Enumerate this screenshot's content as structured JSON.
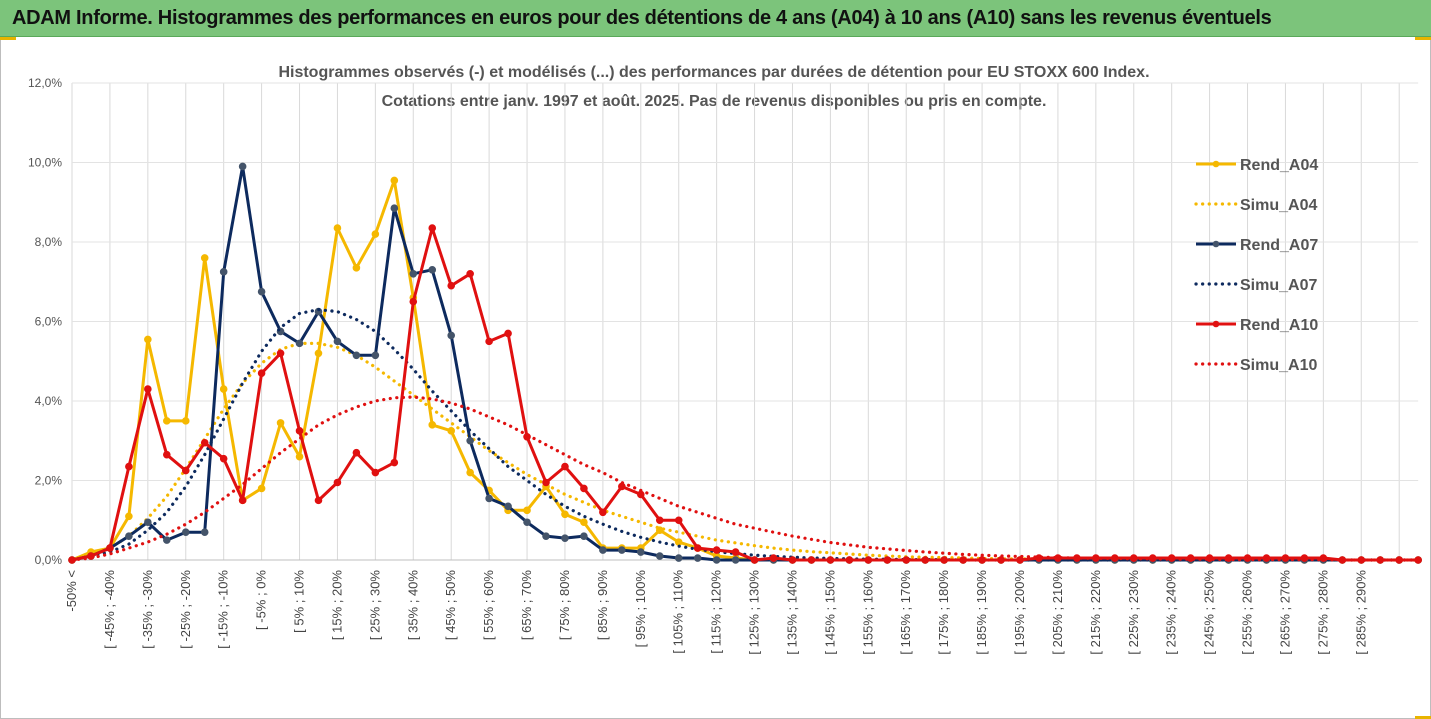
{
  "banner": {
    "title": "ADAM Informe. Histogrammes des performances en euros pour des détentions de 4 ans (A04) à 10 ans (A10) sans les revenus éventuels"
  },
  "chart_data": {
    "type": "line",
    "title_lines": [
      "Histogrammes observés (-) et modélisés (...) des performances par durées de détention pour EU STOXX 600 Index.",
      "Cotations entre janv. 1997 et août. 2025. Pas de revenus disponibles ou pris en compte."
    ],
    "xlabel": "",
    "ylabel": "",
    "ylim": [
      0,
      12
    ],
    "y_ticks": [
      0,
      2,
      4,
      6,
      8,
      10,
      12
    ],
    "y_tick_labels": [
      "0,0%",
      "2,0%",
      "4,0%",
      "6,0%",
      "8,0%",
      "10,0%",
      "12,0%"
    ],
    "grid": "vertical",
    "legend_position": "right",
    "categories": [
      "-50% <",
      "[ -50% ; -45%",
      "[ -45% ; -40%",
      "[ -40% ; -35%",
      "[ -35% ; -30%",
      "[ -30% ; -25%",
      "[ -25% ; -20%",
      "[ -20% ; -15%",
      "[ -15% ; -10%",
      "[ -10% ; -5%",
      "[ -5% ; 0%",
      "[ 0% ; 5%",
      "[ 5% ; 10%",
      "[ 10% ; 15%",
      "[ 15% ; 20%",
      "[ 20% ; 25%",
      "[ 25% ; 30%",
      "[ 30% ; 35%",
      "[ 35% ; 40%",
      "[ 40% ; 45%",
      "[ 45% ; 50%",
      "[ 50% ; 55%",
      "[ 55% ; 60%",
      "[ 60% ; 65%",
      "[ 65% ; 70%",
      "[ 70% ; 75%",
      "[ 75% ; 80%",
      "[ 80% ; 85%",
      "[ 85% ; 90%",
      "[ 90% ; 95%",
      "[ 95% ; 100%",
      "[ 100% ; 105%",
      "[ 105% ; 110%",
      "[ 110% ; 115%",
      "[ 115% ; 120%",
      "[ 120% ; 125%",
      "[ 125% ; 130%",
      "[ 130% ; 135%",
      "[ 135% ; 140%",
      "[ 140% ; 145%",
      "[ 145% ; 150%",
      "[ 150% ; 155%",
      "[ 155% ; 160%",
      "[ 160% ; 165%",
      "[ 165% ; 170%",
      "[ 170% ; 175%",
      "[ 175% ; 180%",
      "[ 180% ; 185%",
      "[ 185% ; 190%",
      "[ 190% ; 195%",
      "[ 195% ; 200%",
      "[ 200% ; 205%",
      "[ 205% ; 210%",
      "[ 210% ; 215%",
      "[ 215% ; 220%",
      "[ 220% ; 225%",
      "[ 225% ; 230%",
      "[ 230% ; 235%",
      "[ 235% ; 240%",
      "[ 240% ; 245%",
      "[ 245% ; 250%",
      "[ 250% ; 255%",
      "[ 255% ; 260%",
      "[ 260% ; 265%",
      "[ 265% ; 270%",
      "[ 270% ; 275%",
      "[ 275% ; 280%",
      "[ 280% ; 285%",
      "[ 285% ; 290%",
      "[ 290% ; 295%",
      "[ 295% ; 300%",
      "[ 300% ; 305%"
    ],
    "visible_tick_labels": [
      "-50% <",
      "[ -45% ; -40%",
      "[ -35% ; -30%",
      "[ -25% ; -20%",
      "[ -15% ; -10%",
      "[ -5% ; 0%",
      "[ 5% ; 10%",
      "[ 15% ; 20%",
      "[ 25% ; 30%",
      "[ 35% ; 40%",
      "[ 45% ; 50%",
      "[ 55% ; 60%",
      "[ 65% ; 70%",
      "[ 75% ; 80%",
      "[ 85% ; 90%",
      "[ 95% ; 100%",
      "[ 105% ; 110%",
      "[ 115% ; 120%",
      "[ 125% ; 130%",
      "[ 135% ; 140%",
      "[ 145% ; 150%",
      "[ 155% ; 160%",
      "[ 165% ; 170%",
      "[ 175% ; 180%",
      "[ 185% ; 190%",
      "[ 195% ; 200%",
      "[ 205% ; 210%",
      "[ 215% ; 220%",
      "[ 225% ; 230%",
      "[ 235% ; 240%",
      "[ 245% ; 250%",
      "[ 255% ; 260%",
      "[ 265% ; 270%",
      "[ 275% ; 280%",
      "[ 285% ; 290%"
    ],
    "series": [
      {
        "name": "Rend_A04",
        "style": "solid",
        "color": "#f5b800",
        "values": [
          0.0,
          0.2,
          0.3,
          1.1,
          5.55,
          3.5,
          3.5,
          7.6,
          4.3,
          1.5,
          1.8,
          3.45,
          2.6,
          5.2,
          8.35,
          7.35,
          8.2,
          9.55,
          6.6,
          3.4,
          3.25,
          2.2,
          1.75,
          1.25,
          1.25,
          1.85,
          1.15,
          0.95,
          0.3,
          0.3,
          0.3,
          0.75,
          0.45,
          0.3,
          0.1,
          0.05,
          0.0,
          0.0,
          0.0,
          0.0,
          0.0,
          0.0,
          0.0,
          0.0,
          0.0,
          0.0,
          0.0,
          0.0,
          0.0,
          0.0,
          0.0,
          0.0,
          0.0,
          0.0,
          0.0,
          0.0,
          0.0,
          0.0,
          0.0,
          0.0,
          0.0,
          0.0,
          0.0,
          0.0,
          0.0,
          0.0,
          0.0,
          0.0,
          0.0,
          0.0,
          0.0,
          0.0
        ]
      },
      {
        "name": "Simu_A04",
        "style": "dotted",
        "color": "#f5b800",
        "values": [
          0.0,
          0.1,
          0.3,
          0.6,
          1.05,
          1.6,
          2.3,
          3.05,
          3.8,
          4.45,
          4.95,
          5.3,
          5.45,
          5.45,
          5.35,
          5.15,
          4.85,
          4.5,
          4.15,
          3.8,
          3.45,
          3.1,
          2.75,
          2.45,
          2.15,
          1.9,
          1.65,
          1.45,
          1.25,
          1.1,
          0.95,
          0.8,
          0.7,
          0.6,
          0.5,
          0.43,
          0.36,
          0.3,
          0.25,
          0.21,
          0.18,
          0.15,
          0.12,
          0.1,
          0.08,
          0.07,
          0.06,
          0.05,
          0.04,
          0.03,
          0.03,
          0.02,
          0.02,
          0.02,
          0.01,
          0.01,
          0.01,
          0.01,
          0.01,
          0.0,
          0.0,
          0.0,
          0.0,
          0.0,
          0.0,
          0.0,
          0.0,
          0.0,
          0.0,
          0.0,
          0.0,
          0.0
        ]
      },
      {
        "name": "Rend_A07",
        "style": "solid",
        "color": "#0d2a5e",
        "values": [
          0.0,
          0.1,
          0.3,
          0.6,
          0.95,
          0.5,
          0.7,
          0.7,
          7.25,
          9.9,
          6.75,
          5.75,
          5.45,
          6.25,
          5.5,
          5.15,
          5.15,
          8.85,
          7.2,
          7.3,
          5.65,
          3.0,
          1.55,
          1.35,
          0.95,
          0.6,
          0.55,
          0.6,
          0.25,
          0.25,
          0.2,
          0.1,
          0.05,
          0.05,
          0.0,
          0.0,
          0.0,
          0.0,
          0.0,
          0.0,
          0.0,
          0.0,
          0.0,
          0.0,
          0.0,
          0.0,
          0.0,
          0.0,
          0.0,
          0.0,
          0.0,
          0.0,
          0.0,
          0.0,
          0.0,
          0.0,
          0.0,
          0.0,
          0.0,
          0.0,
          0.0,
          0.0,
          0.0,
          0.0,
          0.0,
          0.0,
          0.0,
          0.0,
          0.0,
          0.0,
          0.0,
          0.0
        ]
      },
      {
        "name": "Simu_A07",
        "style": "dotted",
        "color": "#0d2a5e",
        "values": [
          0.0,
          0.1,
          0.2,
          0.4,
          0.75,
          1.2,
          1.85,
          2.65,
          3.55,
          4.45,
          5.25,
          5.85,
          6.2,
          6.3,
          6.25,
          6.05,
          5.75,
          5.3,
          4.8,
          4.25,
          3.75,
          3.25,
          2.8,
          2.35,
          2.0,
          1.65,
          1.35,
          1.1,
          0.9,
          0.72,
          0.57,
          0.45,
          0.35,
          0.27,
          0.21,
          0.16,
          0.12,
          0.09,
          0.07,
          0.05,
          0.04,
          0.03,
          0.02,
          0.02,
          0.01,
          0.01,
          0.01,
          0.0,
          0.0,
          0.0,
          0.0,
          0.0,
          0.0,
          0.0,
          0.0,
          0.0,
          0.0,
          0.0,
          0.0,
          0.0,
          0.0,
          0.0,
          0.0,
          0.0,
          0.0,
          0.0,
          0.0,
          0.0,
          0.0,
          0.0,
          0.0,
          0.0
        ]
      },
      {
        "name": "Rend_A10",
        "style": "solid",
        "color": "#e01010",
        "values": [
          0.0,
          0.1,
          0.3,
          2.35,
          4.3,
          2.65,
          2.25,
          2.95,
          2.55,
          1.5,
          4.7,
          5.2,
          3.25,
          1.5,
          1.95,
          2.7,
          2.2,
          2.45,
          6.5,
          8.35,
          6.9,
          7.2,
          5.5,
          5.7,
          3.1,
          1.95,
          2.35,
          1.8,
          1.2,
          1.85,
          1.65,
          1.0,
          1.0,
          0.3,
          0.25,
          0.2,
          0.0,
          0.05,
          0.0,
          0.0,
          0.0,
          0.0,
          0.0,
          0.0,
          0.0,
          0.0,
          0.0,
          0.0,
          0.0,
          0.0,
          0.0,
          0.05,
          0.05,
          0.05,
          0.05,
          0.05,
          0.05,
          0.05,
          0.05,
          0.05,
          0.05,
          0.05,
          0.05,
          0.05,
          0.05,
          0.05,
          0.05,
          0.0,
          0.0,
          0.0,
          0.0,
          0.0
        ]
      },
      {
        "name": "Simu_A10",
        "style": "dotted",
        "color": "#e01010",
        "values": [
          0.0,
          0.05,
          0.15,
          0.3,
          0.45,
          0.65,
          0.9,
          1.2,
          1.55,
          1.9,
          2.3,
          2.7,
          3.05,
          3.4,
          3.65,
          3.85,
          4.0,
          4.08,
          4.1,
          4.05,
          3.95,
          3.8,
          3.6,
          3.4,
          3.15,
          2.9,
          2.65,
          2.4,
          2.2,
          1.95,
          1.75,
          1.55,
          1.35,
          1.2,
          1.05,
          0.9,
          0.8,
          0.7,
          0.6,
          0.52,
          0.44,
          0.38,
          0.32,
          0.28,
          0.24,
          0.2,
          0.17,
          0.14,
          0.12,
          0.1,
          0.09,
          0.07,
          0.06,
          0.05,
          0.04,
          0.04,
          0.03,
          0.03,
          0.02,
          0.02,
          0.02,
          0.01,
          0.01,
          0.01,
          0.01,
          0.01,
          0.01,
          0.0,
          0.0,
          0.0,
          0.0,
          0.0
        ]
      }
    ]
  }
}
